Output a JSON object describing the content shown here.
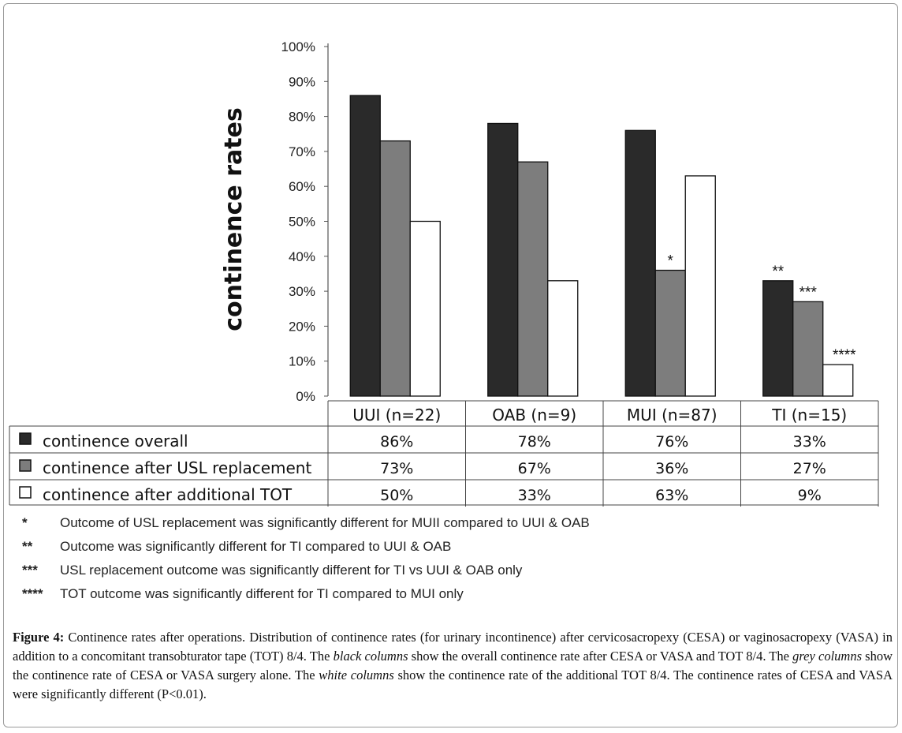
{
  "chart_data": {
    "type": "bar",
    "ylabel": "continence rates",
    "ylim": [
      0,
      100
    ],
    "yticks": [
      "0%",
      "10%",
      "20%",
      "30%",
      "40%",
      "50%",
      "60%",
      "70%",
      "80%",
      "90%",
      "100%"
    ],
    "categories": [
      "UUI (n=22)",
      "OAB (n=9)",
      "MUI (n=87)",
      "TI (n=15)"
    ],
    "series": [
      {
        "name": "continence overall",
        "color": "#2a2a2a",
        "values": [
          86,
          78,
          76,
          33
        ]
      },
      {
        "name": "continence after USL replacement",
        "color": "#7d7d7d",
        "values": [
          73,
          67,
          36,
          27
        ]
      },
      {
        "name": "continence after additional TOT",
        "color": "#ffffff",
        "values": [
          50,
          33,
          63,
          9
        ]
      }
    ],
    "annotations": [
      {
        "series": 1,
        "category": 2,
        "text": "*"
      },
      {
        "series": 0,
        "category": 3,
        "text": "**"
      },
      {
        "series": 1,
        "category": 3,
        "text": "***"
      },
      {
        "series": 2,
        "category": 3,
        "text": "****"
      }
    ],
    "table": {
      "rows": [
        [
          "86%",
          "78%",
          "76%",
          "33%"
        ],
        [
          "73%",
          "67%",
          "36%",
          "27%"
        ],
        [
          "50%",
          "33%",
          "63%",
          "9%"
        ]
      ]
    }
  },
  "footnotes": [
    {
      "mark": "*",
      "text": "Outcome  of USL replacement was significantly different for MUII compared to UUI & OAB"
    },
    {
      "mark": "**",
      "text": "Outcome was significantly different for TI compared to UUI & OAB"
    },
    {
      "mark": "***",
      "text": "USL replacement outcome was significantly different for TI vs UUI & OAB only"
    },
    {
      "mark": "****",
      "text": "TOT  outcome was significantly different for TI compared to MUI only"
    }
  ],
  "caption": {
    "label": "Figure 4:",
    "t1": " Continence rates after operations. Distribution of continence rates (for urinary incontinence) after cervicosacropexy (CESA) or vaginosacropexy (VASA) in addition to a concomitant transobturator tape (TOT) 8/4. The ",
    "i1": "black columns",
    "t2": " show the overall continence rate after CESA or VASA and TOT 8/4. The ",
    "i2": "grey columns",
    "t3": " show the continence rate of CESA or VASA surgery alone. The ",
    "i3": "white columns",
    "t4": " show the continence rate of the additional TOT 8/4. The continence rates of CESA and VASA were significantly different (P<0.01)."
  }
}
